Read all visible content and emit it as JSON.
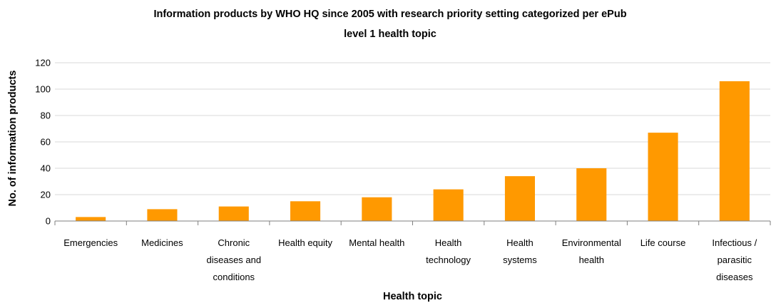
{
  "chart_data": {
    "type": "bar",
    "title": "Information products by WHO HQ since 2005 with research priority setting categorized per ePub level 1 health topic",
    "title_lines": [
      "Information products by WHO HQ since 2005 with research priority setting categorized per ePub",
      "level 1 health topic"
    ],
    "xlabel": "Health topic",
    "ylabel": "No. of information products",
    "ylim": [
      0,
      120
    ],
    "yticks": [
      0,
      20,
      40,
      60,
      80,
      100,
      120
    ],
    "grid": true,
    "legend": "none",
    "bar_color": "#ff9900",
    "categories": [
      "Emergencies",
      "Medicines",
      "Chronic diseases and conditions",
      "Health equity",
      "Mental health",
      "Health technology",
      "Health systems",
      "Environmental health",
      "Life course",
      "Infectious / parasitic diseases"
    ],
    "category_lines": [
      [
        "Emergencies"
      ],
      [
        "Medicines"
      ],
      [
        "Chronic",
        "diseases and",
        "conditions"
      ],
      [
        "Health equity"
      ],
      [
        "Mental health"
      ],
      [
        "Health",
        "technology"
      ],
      [
        "Health",
        "systems"
      ],
      [
        "Environmental",
        "health"
      ],
      [
        "Life course"
      ],
      [
        "Infectious /",
        "parasitic",
        "diseases"
      ]
    ],
    "values": [
      3,
      9,
      11,
      15,
      18,
      24,
      34,
      40,
      67,
      106
    ]
  }
}
